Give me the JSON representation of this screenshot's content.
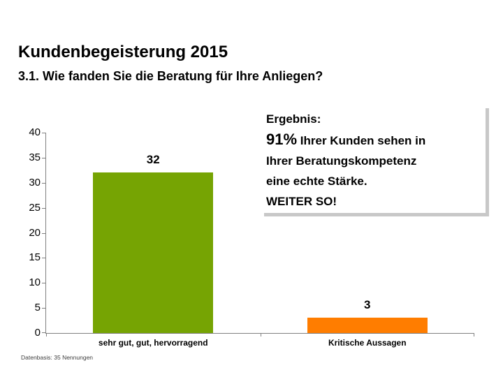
{
  "slide": {
    "title": "Kundenbegeisterung 2015",
    "subtitle": "3.1. Wie fanden Sie die Beratung für Ihre Anliegen?",
    "footer": "Datenbasis: 35 Nennungen"
  },
  "result_box": {
    "heading": "Ergebnis:",
    "highlight": "91%",
    "highlight_rest": " Ihrer Kunden sehen in",
    "lines": [
      "Ihrer Beratungskompetenz",
      "eine echte Stärke.",
      "WEITER SO!"
    ],
    "shadow_color": "#c8c8c8"
  },
  "chart_data": {
    "type": "bar",
    "categories": [
      "sehr gut, gut, hervorragend",
      "Kritische Aussagen"
    ],
    "values": [
      32,
      3
    ],
    "data_labels": [
      "32",
      "3"
    ],
    "bar_colors": [
      "#76a403",
      "#ff7d00"
    ],
    "title": "",
    "xlabel": "",
    "ylabel": "",
    "ylim": [
      0,
      40
    ],
    "ytick_step": 5,
    "yticks": [
      0,
      5,
      10,
      15,
      20,
      25,
      30,
      35,
      40
    ],
    "grid": false,
    "legend": false,
    "axis_color": "#808080"
  }
}
